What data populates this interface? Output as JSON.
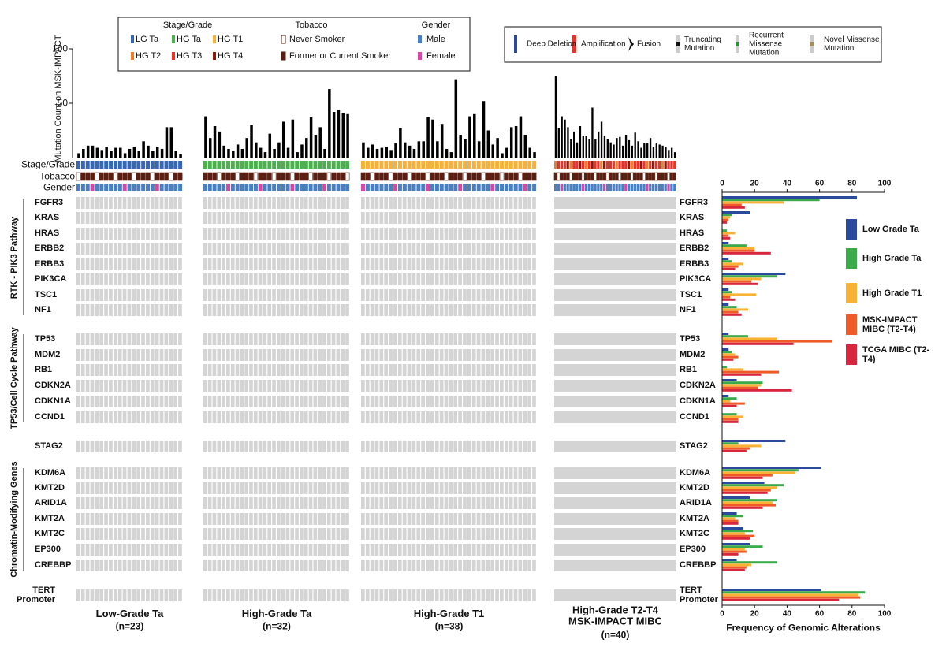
{
  "legend_stage": {
    "title": "Stage/Grade",
    "items": [
      {
        "label": "LG Ta",
        "color": "#3a67b5"
      },
      {
        "label": "HG Ta",
        "color": "#4cb050"
      },
      {
        "label": "HG T1",
        "color": "#f6b13b"
      },
      {
        "label": "HG T2",
        "color": "#f47b2a"
      },
      {
        "label": "HG T3",
        "color": "#e8332a"
      },
      {
        "label": "HG T4",
        "color": "#8b1a12"
      }
    ]
  },
  "legend_tobacco": {
    "title": "Tobacco",
    "items": [
      {
        "label": "Never Smoker",
        "color": "#ffffff"
      },
      {
        "label": "Former or Current Smoker",
        "color": "#5a1e12"
      }
    ]
  },
  "legend_gender": {
    "title": "Gender",
    "items": [
      {
        "label": "Male",
        "color": "#4a7fc1"
      },
      {
        "label": "Female",
        "color": "#d24aa5"
      }
    ]
  },
  "legend_alterations": [
    "Deep Deletion",
    "Amplification",
    "Fusion",
    "Truncating Mutation",
    "Recurrent Missense Mutation",
    "Novel Missense Mutation"
  ],
  "tracks": [
    "Stage/Grade",
    "Tobacco",
    "Gender"
  ],
  "pathways": [
    "RTK - PIK3 Pathway",
    "TP53/Cell Cycle Pathway",
    "Chromatin-Modifying Genes"
  ],
  "groups": [
    {
      "label": "Low-Grade Ta",
      "n": "(n=23)"
    },
    {
      "label": "High-Grade Ta",
      "n": "(n=32)"
    },
    {
      "label": "High-Grade T1",
      "n": "(n=38)"
    },
    {
      "label": "High-Grade T2-T4 MSK-IMPACT MIBC",
      "n": "(n=40)"
    }
  ],
  "chart_data": [
    {
      "type": "bar",
      "y_label": "Mutation Count on MSK-IMPACT",
      "color": "#000000",
      "ylim": [
        0,
        100
      ],
      "yticks": [
        50,
        100
      ],
      "series": [
        {
          "values": [
            4,
            8,
            11,
            11,
            9,
            7,
            10,
            6,
            9,
            9,
            4,
            8,
            10,
            6,
            15,
            11,
            6,
            10,
            8,
            28,
            28,
            6,
            3
          ]
        },
        {
          "values": [
            38,
            18,
            29,
            24,
            11,
            8,
            6,
            12,
            8,
            18,
            30,
            14,
            9,
            5,
            22,
            8,
            14,
            33,
            9,
            35,
            5,
            12,
            18,
            37,
            21,
            28,
            8,
            63,
            42,
            44,
            41,
            40
          ]
        },
        {
          "values": [
            14,
            9,
            12,
            8,
            9,
            10,
            7,
            13,
            27,
            14,
            11,
            8,
            15,
            15,
            37,
            35,
            15,
            31,
            8,
            5,
            72,
            21,
            17,
            38,
            40,
            15,
            52,
            25,
            12,
            18,
            4,
            9,
            28,
            29,
            38,
            21,
            9,
            5
          ]
        },
        {
          "values": [
            75,
            27,
            38,
            35,
            28,
            17,
            24,
            14,
            29,
            20,
            20,
            17,
            46,
            17,
            24,
            33,
            20,
            17,
            14,
            12,
            18,
            19,
            11,
            21,
            16,
            11,
            23,
            15,
            9,
            13,
            13,
            18,
            10,
            13,
            12,
            11,
            10,
            7,
            9,
            5
          ]
        }
      ]
    },
    {
      "type": "hbar",
      "x_label": "Frequency of Genomic Alterations",
      "xlim": [
        0,
        100
      ],
      "xticks": [
        0,
        20,
        40,
        60,
        80,
        100
      ],
      "categories": [
        "FGFR3",
        "KRAS",
        "HRAS",
        "ERBB2",
        "ERBB3",
        "PIK3CA",
        "TSC1",
        "NF1",
        "TP53",
        "MDM2",
        "RB1",
        "CDKN2A",
        "CDKN1A",
        "CCND1",
        "STAG2",
        "KDM6A",
        "KMT2D",
        "ARID1A",
        "KMT2A",
        "KMT2C",
        "EP300",
        "CREBBP",
        "TERT Promoter"
      ],
      "series": [
        {
          "name": "Low Grade Ta",
          "color": "#2b4a9e",
          "values": [
            83,
            17,
            0,
            4,
            4,
            39,
            4,
            4,
            4,
            4,
            0,
            9,
            4,
            0,
            39,
            61,
            26,
            17,
            9,
            13,
            17,
            9,
            61
          ]
        },
        {
          "name": "High Grade Ta",
          "color": "#3aaa4a",
          "values": [
            60,
            6,
            3,
            15,
            6,
            34,
            6,
            9,
            16,
            6,
            3,
            25,
            9,
            9,
            10,
            47,
            38,
            34,
            13,
            19,
            25,
            34,
            88
          ]
        },
        {
          "name": "High Grade T1",
          "color": "#f9b233",
          "values": [
            38,
            5,
            8,
            20,
            13,
            24,
            21,
            16,
            34,
            8,
            13,
            24,
            5,
            13,
            24,
            45,
            34,
            31,
            8,
            14,
            14,
            18,
            84
          ]
        },
        {
          "name": "MSK-IMPACT MIBC (T2-T4)",
          "color": "#f05a28",
          "values": [
            12,
            4,
            4,
            20,
            10,
            18,
            5,
            10,
            68,
            10,
            35,
            22,
            14,
            10,
            17,
            31,
            30,
            33,
            10,
            20,
            15,
            15,
            85
          ]
        },
        {
          "name": "TCGA MIBC (T2-T4)",
          "color": "#d7263d",
          "values": [
            14,
            3,
            5,
            30,
            8,
            22,
            8,
            12,
            44,
            7,
            24,
            43,
            9,
            10,
            15,
            25,
            28,
            25,
            10,
            17,
            10,
            14,
            72
          ]
        }
      ]
    }
  ]
}
